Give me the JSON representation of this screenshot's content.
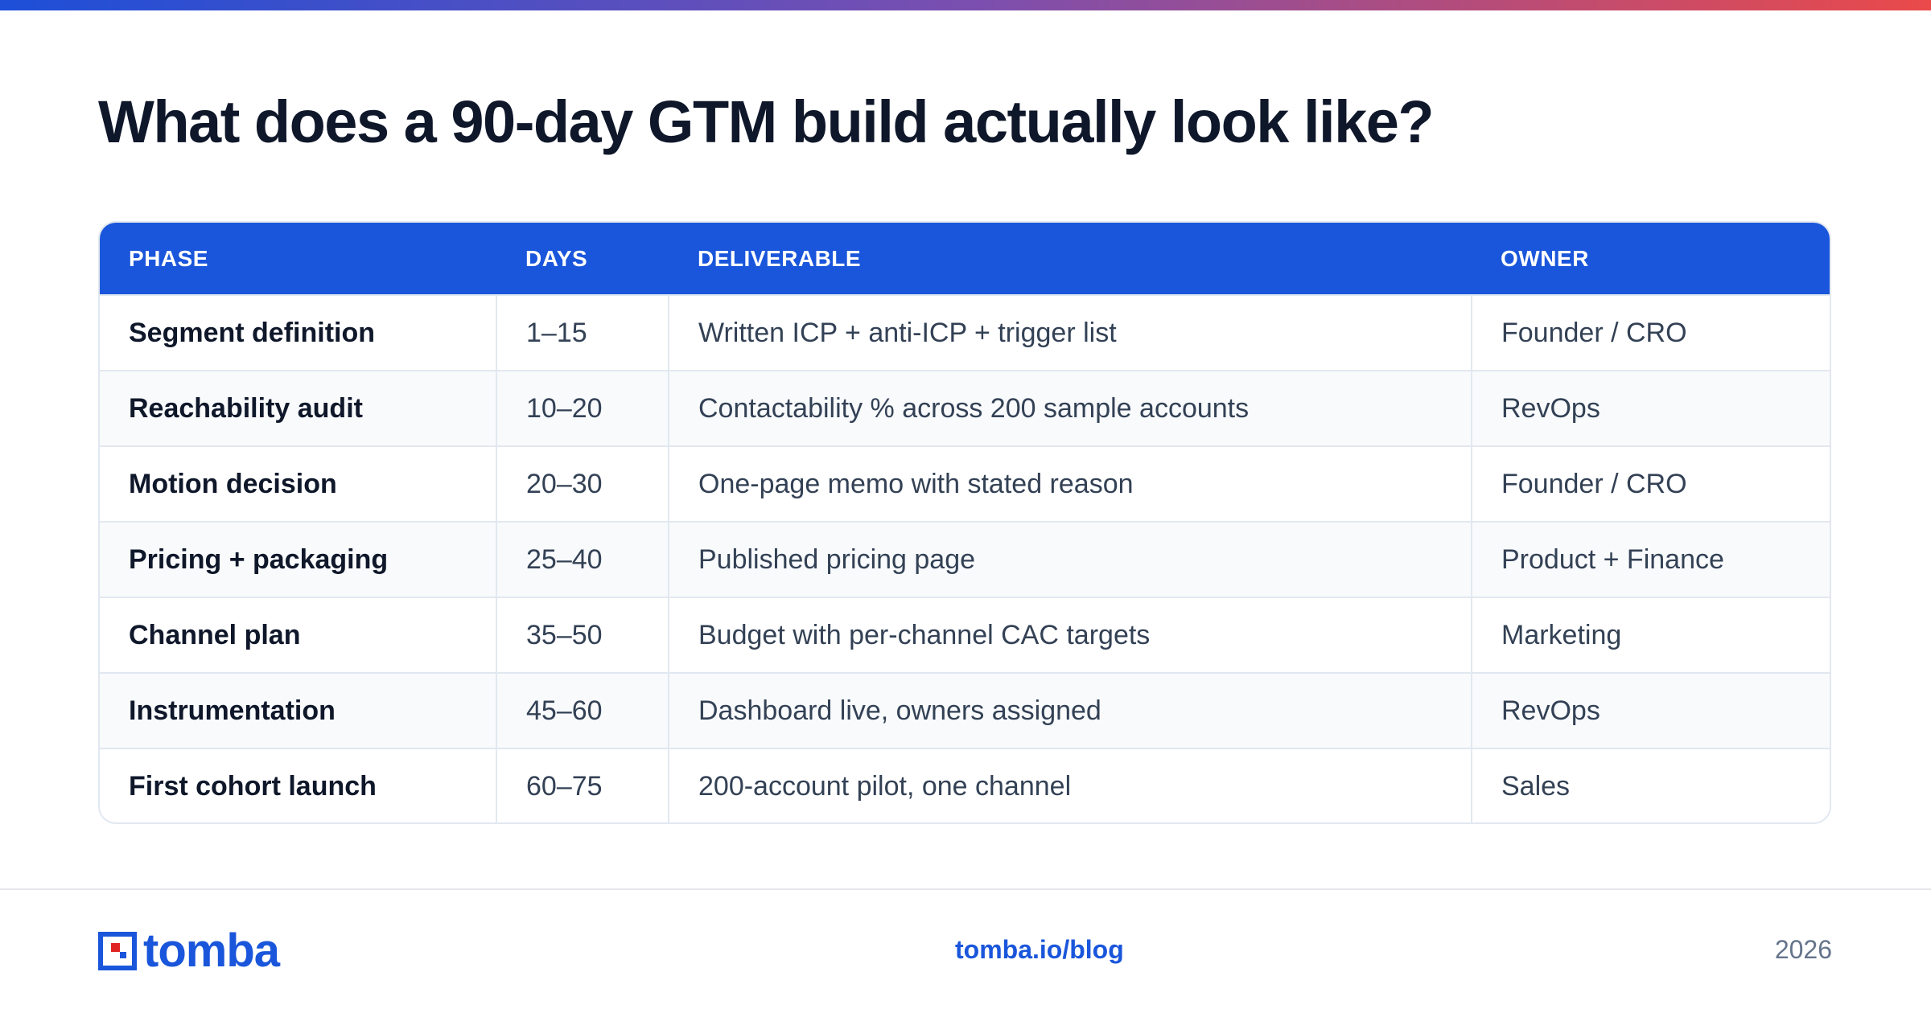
{
  "title": "What does a 90-day GTM build actually look like?",
  "table": {
    "headers": [
      "PHASE",
      "DAYS",
      "DELIVERABLE",
      "OWNER"
    ],
    "rows": [
      {
        "phase": "Segment definition",
        "days": "1–15",
        "deliverable": "Written ICP + anti-ICP + trigger list",
        "owner": "Founder / CRO"
      },
      {
        "phase": "Reachability audit",
        "days": "10–20",
        "deliverable": "Contactability % across 200 sample accounts",
        "owner": "RevOps"
      },
      {
        "phase": "Motion decision",
        "days": "20–30",
        "deliverable": "One-page memo with stated reason",
        "owner": "Founder / CRO"
      },
      {
        "phase": "Pricing + packaging",
        "days": "25–40",
        "deliverable": "Published pricing page",
        "owner": "Product + Finance"
      },
      {
        "phase": "Channel plan",
        "days": "35–50",
        "deliverable": "Budget with per-channel CAC targets",
        "owner": "Marketing"
      },
      {
        "phase": "Instrumentation",
        "days": "45–60",
        "deliverable": "Dashboard live, owners assigned",
        "owner": "RevOps"
      },
      {
        "phase": "First cohort launch",
        "days": "60–75",
        "deliverable": "200-account pilot, one channel",
        "owner": "Sales"
      }
    ]
  },
  "footer": {
    "logo_text": "tomba",
    "logo_icon": "tomba-logo-mark-icon",
    "link": "tomba.io/blog",
    "year": "2026"
  },
  "colors": {
    "accent": "#1a56db",
    "gradient_start": "#1d4fd8",
    "gradient_end": "#ea4a4a",
    "logo_red": "#e02424"
  }
}
